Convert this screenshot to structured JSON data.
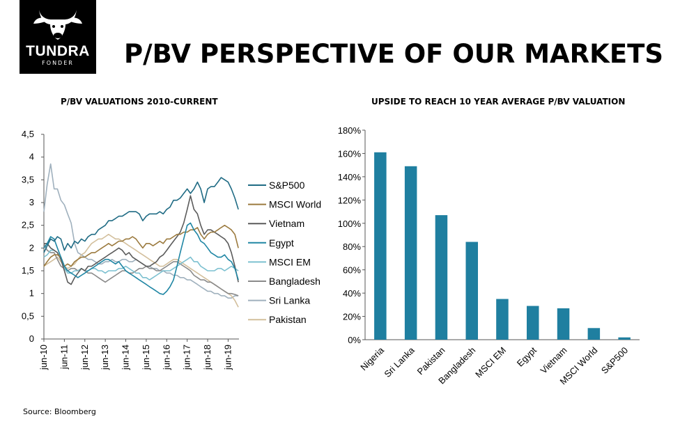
{
  "header": {
    "title": "P/BV PERSPECTIVE OF OUR MARKETS",
    "logo_text": "TUNDRA",
    "logo_subtext": "FONDER"
  },
  "footer": {
    "source": "Source: Bloomberg"
  },
  "colors": {
    "S&P500": "#1f6b84",
    "MSCI World": "#9b7a3e",
    "Vietnam": "#5b5b5b",
    "Egypt": "#1f86a4",
    "MSCI EM": "#7cc0d0",
    "Bangladesh": "#8a8a8a",
    "Sri Lanka": "#9fb0bd",
    "Pakistan": "#d3bf9c",
    "bar": "#1f7fa0"
  },
  "chart_data": [
    {
      "type": "line",
      "title": "P/BV VALUATIONS 2010-CURRENT",
      "ylim": [
        0,
        4.5
      ],
      "yticks": [
        "0",
        "0,5",
        "1",
        "1,5",
        "2",
        "2,5",
        "3",
        "3,5",
        "4",
        "4,5"
      ],
      "xticks": [
        "jun-10",
        "jun-11",
        "jun-12",
        "jun-13",
        "jun-14",
        "jun-15",
        "jun-16",
        "jun-17",
        "jun-18",
        "jun-19"
      ],
      "legend_position": "right",
      "x": [
        2010.42,
        2010.58,
        2010.75,
        2010.92,
        2011.08,
        2011.25,
        2011.42,
        2011.58,
        2011.75,
        2011.92,
        2012.08,
        2012.25,
        2012.42,
        2012.58,
        2012.75,
        2012.92,
        2013.08,
        2013.25,
        2013.42,
        2013.58,
        2013.75,
        2013.92,
        2014.08,
        2014.25,
        2014.42,
        2014.58,
        2014.75,
        2014.92,
        2015.08,
        2015.25,
        2015.42,
        2015.58,
        2015.75,
        2015.92,
        2016.08,
        2016.25,
        2016.42,
        2016.58,
        2016.75,
        2016.92,
        2017.08,
        2017.25,
        2017.42,
        2017.58,
        2017.75,
        2017.92,
        2018.08,
        2018.25,
        2018.42,
        2018.58,
        2018.75,
        2018.92,
        2019.08,
        2019.25,
        2019.42,
        2019.58,
        2019.75,
        2019.92
      ],
      "series": [
        {
          "name": "S&P500",
          "values": [
            1.9,
            2.05,
            2.2,
            2.15,
            2.25,
            2.2,
            1.95,
            2.1,
            2.0,
            2.15,
            2.1,
            2.2,
            2.15,
            2.25,
            2.3,
            2.3,
            2.4,
            2.45,
            2.5,
            2.6,
            2.6,
            2.65,
            2.7,
            2.7,
            2.75,
            2.8,
            2.8,
            2.8,
            2.75,
            2.6,
            2.7,
            2.75,
            2.75,
            2.75,
            2.8,
            2.75,
            2.85,
            2.9,
            3.05,
            3.05,
            3.1,
            3.2,
            3.3,
            3.2,
            3.3,
            3.45,
            3.3,
            3.0,
            3.3,
            3.35,
            3.35,
            3.45,
            3.55,
            3.5,
            3.45,
            3.3,
            3.1,
            2.85
          ]
        },
        {
          "name": "MSCI World",
          "values": [
            1.6,
            1.7,
            1.8,
            1.85,
            1.85,
            1.8,
            1.6,
            1.65,
            1.6,
            1.7,
            1.75,
            1.8,
            1.8,
            1.85,
            1.9,
            1.9,
            1.95,
            2.0,
            2.05,
            2.1,
            2.05,
            2.1,
            2.15,
            2.15,
            2.2,
            2.2,
            2.25,
            2.2,
            2.1,
            2.0,
            2.1,
            2.1,
            2.05,
            2.1,
            2.15,
            2.1,
            2.2,
            2.2,
            2.25,
            2.3,
            2.3,
            2.35,
            2.35,
            2.4,
            2.4,
            2.45,
            2.3,
            2.2,
            2.3,
            2.35,
            2.35,
            2.4,
            2.45,
            2.5,
            2.45,
            2.4,
            2.3,
            2.0
          ]
        },
        {
          "name": "Vietnam",
          "values": [
            2.1,
            2.1,
            2.0,
            1.95,
            1.9,
            1.75,
            1.5,
            1.25,
            1.2,
            1.35,
            1.45,
            1.55,
            1.5,
            1.6,
            1.6,
            1.65,
            1.7,
            1.75,
            1.8,
            1.85,
            1.9,
            1.95,
            2.0,
            1.95,
            1.85,
            1.9,
            1.8,
            1.75,
            1.7,
            1.65,
            1.6,
            1.6,
            1.65,
            1.7,
            1.8,
            1.85,
            1.95,
            2.05,
            2.15,
            2.25,
            2.35,
            2.55,
            2.85,
            3.15,
            2.85,
            2.75,
            2.5,
            2.3,
            2.4,
            2.4,
            2.35,
            2.3,
            2.25,
            2.2,
            2.1,
            1.9,
            1.6,
            1.25
          ]
        },
        {
          "name": "Egypt",
          "values": [
            2.0,
            2.1,
            2.25,
            2.2,
            2.0,
            1.8,
            1.6,
            1.5,
            1.45,
            1.4,
            1.35,
            1.4,
            1.45,
            1.5,
            1.55,
            1.6,
            1.65,
            1.7,
            1.75,
            1.75,
            1.7,
            1.65,
            1.7,
            1.6,
            1.5,
            1.45,
            1.4,
            1.35,
            1.3,
            1.25,
            1.2,
            1.15,
            1.1,
            1.05,
            1.0,
            0.98,
            1.05,
            1.15,
            1.3,
            1.6,
            1.9,
            2.2,
            2.5,
            2.55,
            2.4,
            2.3,
            2.15,
            2.1,
            2.0,
            1.9,
            1.85,
            1.8,
            1.8,
            1.85,
            1.75,
            1.7,
            1.55,
            1.3
          ]
        },
        {
          "name": "MSCI EM",
          "values": [
            1.8,
            1.85,
            1.95,
            1.95,
            1.9,
            1.75,
            1.55,
            1.45,
            1.45,
            1.5,
            1.5,
            1.55,
            1.5,
            1.5,
            1.55,
            1.55,
            1.5,
            1.5,
            1.45,
            1.5,
            1.5,
            1.5,
            1.55,
            1.55,
            1.6,
            1.55,
            1.5,
            1.45,
            1.45,
            1.35,
            1.35,
            1.3,
            1.35,
            1.4,
            1.45,
            1.5,
            1.5,
            1.5,
            1.55,
            1.6,
            1.65,
            1.7,
            1.75,
            1.8,
            1.7,
            1.7,
            1.6,
            1.55,
            1.5,
            1.5,
            1.5,
            1.55,
            1.55,
            1.5,
            1.55,
            1.6,
            1.55,
            1.5
          ]
        },
        {
          "name": "Bangladesh",
          "values": [
            2.1,
            1.95,
            1.9,
            1.9,
            1.75,
            1.6,
            1.55,
            1.5,
            1.55,
            1.55,
            1.5,
            1.55,
            1.5,
            1.45,
            1.45,
            1.4,
            1.35,
            1.3,
            1.25,
            1.3,
            1.35,
            1.4,
            1.45,
            1.5,
            1.5,
            1.45,
            1.45,
            1.5,
            1.55,
            1.55,
            1.6,
            1.55,
            1.55,
            1.5,
            1.5,
            1.55,
            1.6,
            1.65,
            1.7,
            1.7,
            1.65,
            1.6,
            1.55,
            1.5,
            1.4,
            1.35,
            1.3,
            1.3,
            1.25,
            1.25,
            1.2,
            1.15,
            1.1,
            1.05,
            1.0,
            1.0,
            0.98,
            0.95
          ]
        },
        {
          "name": "Sri Lanka",
          "values": [
            2.8,
            3.4,
            3.85,
            3.3,
            3.3,
            3.05,
            2.95,
            2.75,
            2.55,
            2.1,
            1.9,
            1.85,
            1.8,
            1.75,
            1.75,
            1.7,
            1.65,
            1.65,
            1.7,
            1.7,
            1.75,
            1.7,
            1.7,
            1.75,
            1.75,
            1.7,
            1.7,
            1.75,
            1.7,
            1.65,
            1.6,
            1.6,
            1.55,
            1.55,
            1.5,
            1.5,
            1.45,
            1.45,
            1.4,
            1.4,
            1.35,
            1.35,
            1.3,
            1.3,
            1.25,
            1.2,
            1.15,
            1.1,
            1.05,
            1.05,
            1.0,
            1.0,
            0.95,
            0.95,
            0.9,
            0.9,
            0.95,
            0.95
          ]
        },
        {
          "name": "Pakistan",
          "values": [
            1.6,
            1.65,
            1.7,
            1.75,
            1.8,
            1.7,
            1.6,
            1.55,
            1.6,
            1.65,
            1.75,
            1.85,
            1.9,
            2.0,
            2.1,
            2.15,
            2.2,
            2.2,
            2.25,
            2.3,
            2.25,
            2.2,
            2.2,
            2.15,
            2.1,
            2.05,
            2.0,
            1.95,
            1.9,
            1.85,
            1.8,
            1.75,
            1.7,
            1.65,
            1.6,
            1.6,
            1.65,
            1.7,
            1.75,
            1.75,
            1.7,
            1.65,
            1.6,
            1.55,
            1.5,
            1.45,
            1.4,
            1.35,
            1.3,
            1.25,
            1.2,
            1.15,
            1.1,
            1.05,
            1.0,
            0.95,
            0.85,
            0.7
          ]
        }
      ]
    },
    {
      "type": "bar",
      "title": "UPSIDE TO  REACH 10 YEAR AVERAGE P/BV VALUATION",
      "ylim": [
        0,
        180
      ],
      "yticks": [
        "0%",
        "20%",
        "40%",
        "60%",
        "80%",
        "100%",
        "120%",
        "140%",
        "160%",
        "180%"
      ],
      "categories": [
        "Nigeria",
        "Sri Lanka",
        "Pakistan",
        "Bangladesh",
        "MSCI EM",
        "Egypt",
        "Vietnam",
        "MSCI World",
        "S&P500"
      ],
      "values": [
        161,
        149,
        107,
        84,
        35,
        29,
        27,
        10,
        2
      ]
    }
  ]
}
